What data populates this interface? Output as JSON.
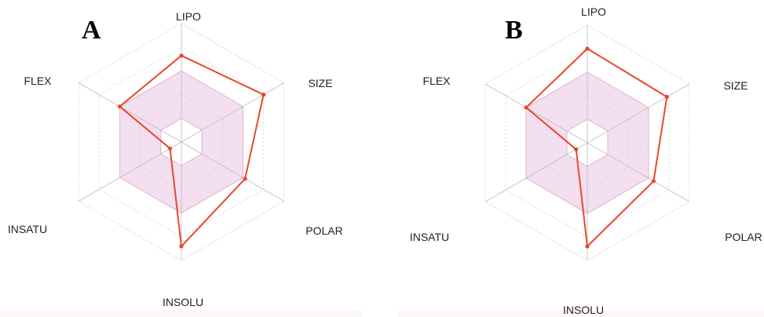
{
  "chart_data": [
    {
      "type": "radar",
      "panel_label": "A",
      "axes": [
        "LIPO",
        "SIZE",
        "POLAR",
        "INSOLU",
        "INSATU",
        "FLEX"
      ],
      "scale": {
        "min": 0,
        "max": 1,
        "rings": 5
      },
      "optimal_range": {
        "lower": [
          0.2,
          0.2,
          0.2,
          0.2,
          0.2,
          0.2
        ],
        "upper": [
          0.6,
          0.6,
          0.6,
          0.6,
          0.6,
          0.6
        ]
      },
      "series": [
        {
          "values": [
            0.73,
            0.8,
            0.62,
            0.88,
            0.11,
            0.6
          ]
        }
      ],
      "colors": {
        "series": "#e8482c",
        "range_fill": "#f3dff0",
        "range_stroke": "#e9a9cc",
        "grid": "#cccccc",
        "axis": "#bbbbbb"
      }
    },
    {
      "type": "radar",
      "panel_label": "B",
      "axes": [
        "LIPO",
        "SIZE",
        "POLAR",
        "INSOLU",
        "INSATU",
        "FLEX"
      ],
      "scale": {
        "min": 0,
        "max": 1,
        "rings": 5
      },
      "optimal_range": {
        "lower": [
          0.2,
          0.2,
          0.2,
          0.2,
          0.2,
          0.2
        ],
        "upper": [
          0.6,
          0.6,
          0.6,
          0.6,
          0.6,
          0.6
        ]
      },
      "series": [
        {
          "values": [
            0.8,
            0.78,
            0.65,
            0.88,
            0.11,
            0.6
          ]
        }
      ],
      "colors": {
        "series": "#e8482c",
        "range_fill": "#f3dff0",
        "range_stroke": "#e9a9cc",
        "grid": "#cccccc",
        "axis": "#bbbbbb"
      }
    }
  ]
}
